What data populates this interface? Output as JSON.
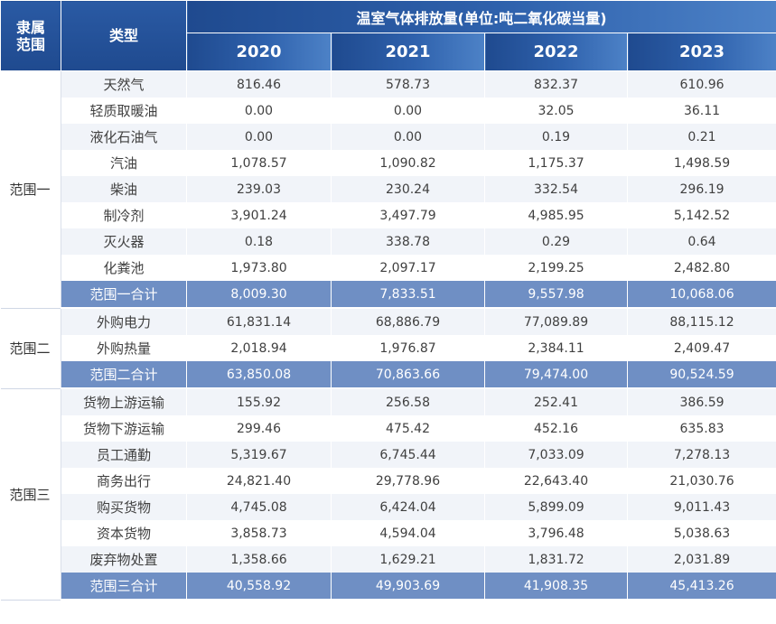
{
  "header": {
    "scope": "隶属\n范围",
    "type": "类型",
    "group_title": "温室气体排放量(单位:吨二氧化碳当量)",
    "years": [
      "2020",
      "2021",
      "2022",
      "2023"
    ]
  },
  "groups": [
    {
      "scope": "范围一",
      "rows": [
        {
          "name": "天然气",
          "values": [
            "816.46",
            "578.73",
            "832.37",
            "610.96"
          ]
        },
        {
          "name": "轻质取暖油",
          "values": [
            "0.00",
            "0.00",
            "32.05",
            "36.11"
          ]
        },
        {
          "name": "液化石油气",
          "values": [
            "0.00",
            "0.00",
            "0.19",
            "0.21"
          ]
        },
        {
          "name": "汽油",
          "values": [
            "1,078.57",
            "1,090.82",
            "1,175.37",
            "1,498.59"
          ]
        },
        {
          "name": "柴油",
          "values": [
            "239.03",
            "230.24",
            "332.54",
            "296.19"
          ]
        },
        {
          "name": "制冷剂",
          "values": [
            "3,901.24",
            "3,497.79",
            "4,985.95",
            "5,142.52"
          ]
        },
        {
          "name": "灭火器",
          "values": [
            "0.18",
            "338.78",
            "0.29",
            "0.64"
          ]
        },
        {
          "name": "化粪池",
          "values": [
            "1,973.80",
            "2,097.17",
            "2,199.25",
            "2,482.80"
          ]
        }
      ],
      "total": {
        "name": "范围一合计",
        "values": [
          "8,009.30",
          "7,833.51",
          "9,557.98",
          "10,068.06"
        ]
      }
    },
    {
      "scope": "范围二",
      "rows": [
        {
          "name": "外购电力",
          "values": [
            "61,831.14",
            "68,886.79",
            "77,089.89",
            "88,115.12"
          ]
        },
        {
          "name": "外购热量",
          "values": [
            "2,018.94",
            "1,976.87",
            "2,384.11",
            "2,409.47"
          ]
        }
      ],
      "total": {
        "name": "范围二合计",
        "values": [
          "63,850.08",
          "70,863.66",
          "79,474.00",
          "90,524.59"
        ]
      }
    },
    {
      "scope": "范围三",
      "rows": [
        {
          "name": "货物上游运输",
          "values": [
            "155.92",
            "256.58",
            "252.41",
            "386.59"
          ]
        },
        {
          "name": "货物下游运输",
          "values": [
            "299.46",
            "475.42",
            "452.16",
            "635.83"
          ]
        },
        {
          "name": "员工通勤",
          "values": [
            "5,319.67",
            "6,745.44",
            "7,033.09",
            "7,278.13"
          ]
        },
        {
          "name": "商务出行",
          "values": [
            "24,821.40",
            "29,778.96",
            "22,643.40",
            "21,030.76"
          ]
        },
        {
          "name": "购买货物",
          "values": [
            "4,745.08",
            "6,424.04",
            "5,899.09",
            "9,011.43"
          ]
        },
        {
          "name": "资本货物",
          "values": [
            "3,858.73",
            "4,594.04",
            "3,796.48",
            "5,038.63"
          ]
        },
        {
          "name": "废弃物处置",
          "values": [
            "1,358.66",
            "1,629.21",
            "1,831.72",
            "2,031.89"
          ]
        }
      ],
      "total": {
        "name": "范围三合计",
        "values": [
          "40,558.92",
          "49,903.69",
          "41,908.35",
          "45,413.26"
        ]
      }
    }
  ]
}
